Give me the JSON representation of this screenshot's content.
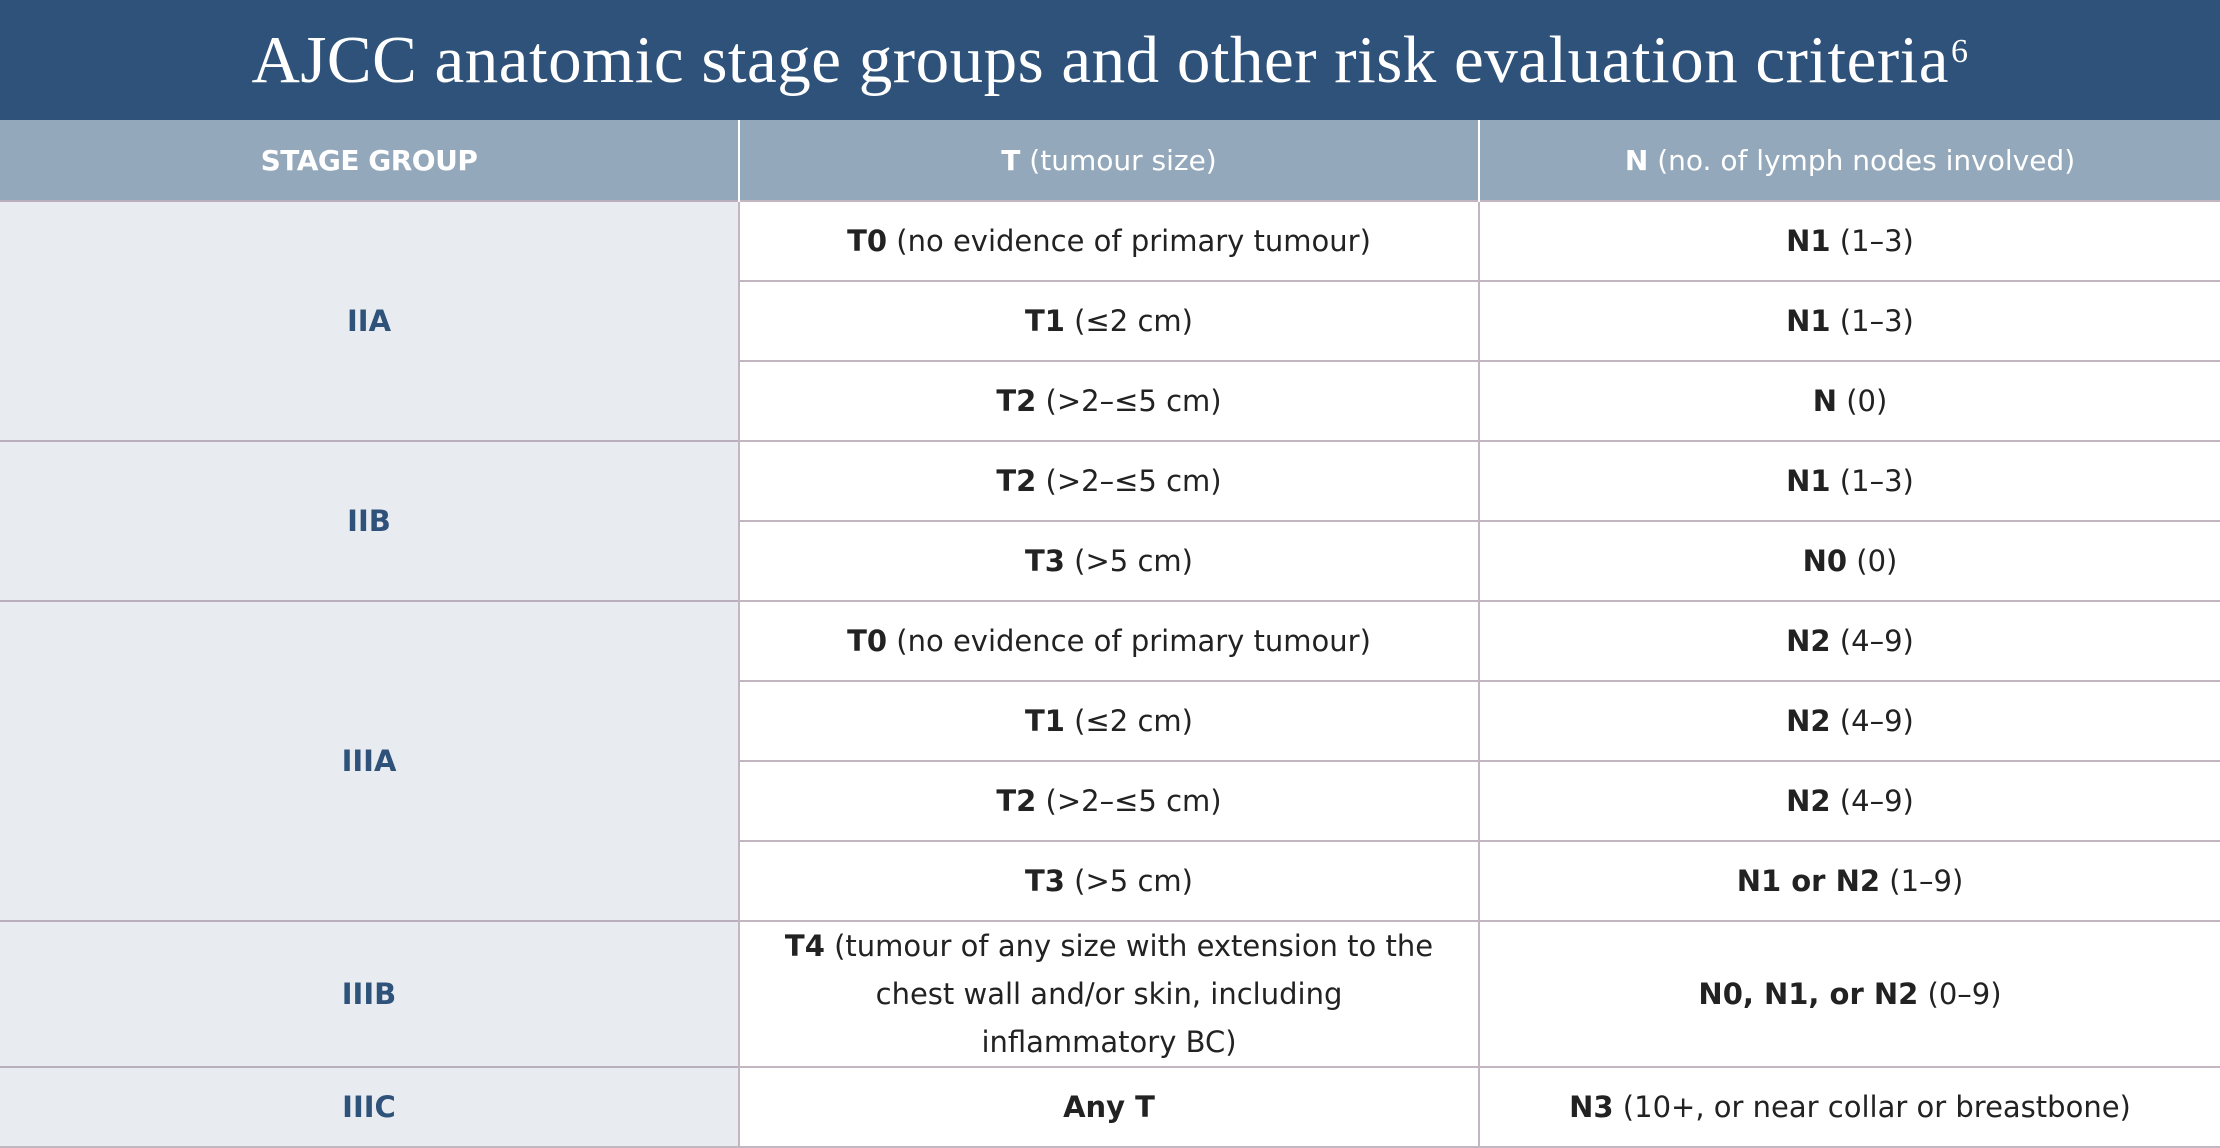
{
  "title": "AJCC anatomic stage groups and other risk evaluation criteria",
  "title_sup": "6",
  "header": {
    "stage_group": "STAGE GROUP",
    "t_bold": "T",
    "t_rest": " (tumour size)",
    "n_bold": "N",
    "n_rest": " (no. of lymph nodes involved)"
  },
  "rows": [
    {
      "stage": "IIA",
      "t_bold": "T0",
      "t_rest": " (no evidence of primary tumour)",
      "n_bold": "N1",
      "n_rest": " (1–3)"
    },
    {
      "t_bold": "T1",
      "t_rest": " (≤2 cm)",
      "n_bold": "N1",
      "n_rest": " (1–3)"
    },
    {
      "t_bold": "T2",
      "t_rest": " (>2–≤5 cm)",
      "n_bold": "N",
      "n_rest": " (0)"
    },
    {
      "stage": "IIB",
      "t_bold": "T2",
      "t_rest": " (>2–≤5 cm)",
      "n_bold": "N1",
      "n_rest": " (1–3)"
    },
    {
      "t_bold": "T3",
      "t_rest": " (>5 cm)",
      "n_bold": "N0",
      "n_rest": " (0)"
    },
    {
      "stage": "IIIA",
      "t_bold": "T0",
      "t_rest": " (no evidence of primary tumour)",
      "n_bold": "N2",
      "n_rest": " (4–9)"
    },
    {
      "t_bold": "T1",
      "t_rest": " (≤2 cm)",
      "n_bold": "N2",
      "n_rest": " (4–9)"
    },
    {
      "t_bold": "T2",
      "t_rest": " (>2–≤5 cm)",
      "n_bold": "N2",
      "n_rest": " (4–9)"
    },
    {
      "t_bold": "T3",
      "t_rest": " (>5 cm)",
      "n_bold": "N1 or N2",
      "n_rest": " (1–9)"
    },
    {
      "stage": "IIIB",
      "t_bold": "T4",
      "t_rest": " (tumour of any size with extension to the chest wall and/or skin, including inflammatory BC)",
      "n_bold": "N0, N1, or N2",
      "n_rest": " (0–9)"
    },
    {
      "stage": "IIIC",
      "t_bold": "Any T",
      "t_rest": "",
      "n_bold": "N3",
      "n_rest": " (10+, or near collar or breastbone)"
    }
  ],
  "colors": {
    "title_bg": "#2e527a",
    "header_bg": "#93a8bb",
    "stage_bg": "#e8ebf0",
    "stage_text": "#2e527a"
  }
}
